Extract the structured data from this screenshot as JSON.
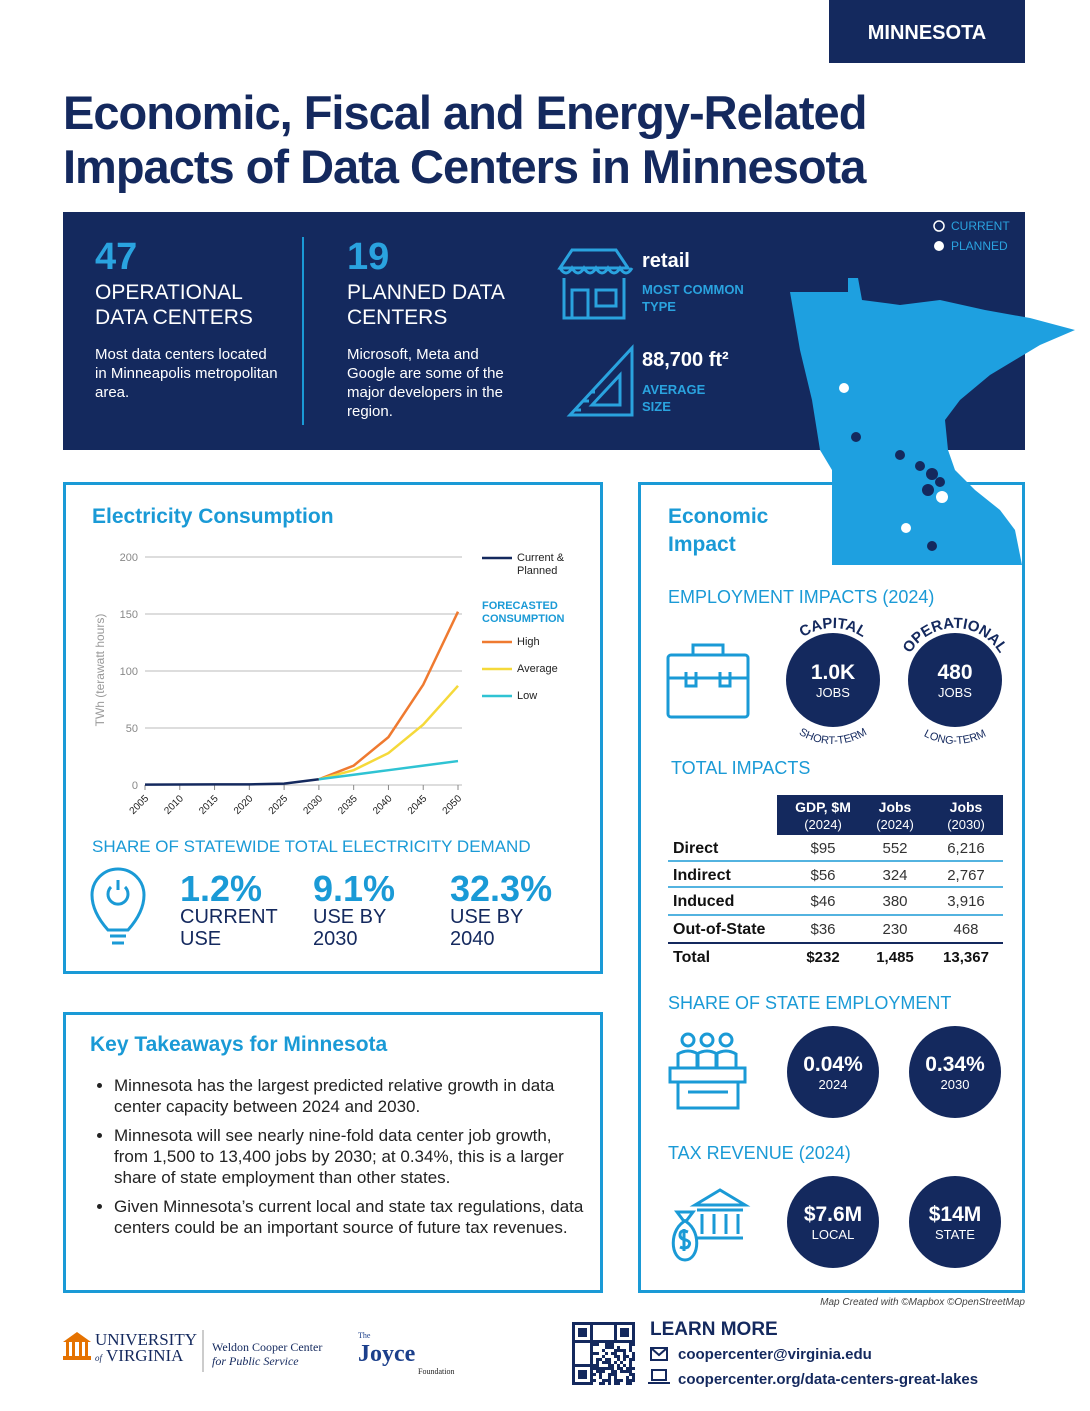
{
  "tag": "MINNESOTA",
  "title": [
    "Economic, Fiscal and Energy-Related",
    "Impacts of Data Centers in Minnesota"
  ],
  "banner": {
    "stats": [
      {
        "value": "47",
        "label": "OPERATIONAL DATA CENTERS",
        "note": "Most data centers located in Minneapolis metropolitan area."
      },
      {
        "value": "19",
        "label": "PLANNED DATA CENTERS",
        "note": "Microsoft, Meta and Google are some of the major developers in the region."
      }
    ],
    "type": {
      "value": "retail",
      "label": "MOST COMMON TYPE"
    },
    "size": {
      "value": "88,700 ft²",
      "label": "AVERAGE SIZE"
    },
    "map_legend": [
      "CURRENT",
      "PLANNED"
    ]
  },
  "electricity": {
    "title": "Electricity Consumption",
    "share_title": "SHARE OF STATEWIDE TOTAL ELECTRICITY DEMAND",
    "shares": [
      {
        "value": "1.2%",
        "label": "CURRENT USE"
      },
      {
        "value": "9.1%",
        "label": "USE BY 2030"
      },
      {
        "value": "32.3%",
        "label": "USE BY 2040"
      }
    ]
  },
  "chart_data": {
    "type": "line",
    "y_label": "TWh (terawatt hours)",
    "legend_title": "FORECASTED CONSUMPTION",
    "x": [
      2005,
      2010,
      2015,
      2020,
      2025,
      2030,
      2035,
      2040,
      2045,
      2050
    ],
    "xlim": [
      2005,
      2050
    ],
    "xticks": [
      2005,
      2010,
      2015,
      2020,
      2025,
      2030,
      2035,
      2040,
      2045,
      2050
    ],
    "ylim": [
      0,
      200
    ],
    "yticks": [
      0,
      50,
      100,
      150,
      200
    ],
    "grid": true,
    "series": [
      {
        "name": "Current & Planned",
        "color": "#14295e",
        "values": [
          0.3,
          0.4,
          0.5,
          0.6,
          1.2,
          5,
          null,
          null,
          null,
          null
        ]
      },
      {
        "name": "High",
        "color": "#ef7a30",
        "values": [
          null,
          null,
          null,
          null,
          null,
          5,
          17,
          42,
          88,
          152
        ]
      },
      {
        "name": "Average",
        "color": "#f5d93a",
        "values": [
          null,
          null,
          null,
          null,
          null,
          5,
          13,
          28,
          53,
          87
        ]
      },
      {
        "name": "Low",
        "color": "#2fc3d3",
        "values": [
          null,
          null,
          null,
          null,
          null,
          5,
          9,
          13,
          17,
          21
        ]
      }
    ]
  },
  "takeaways": {
    "title": "Key Takeaways for Minnesota",
    "items": [
      "Minnesota has the largest predicted relative growth in data center capacity between 2024 and 2030.",
      "Minnesota will see nearly nine-fold data center job growth, from 1,500 to 13,400 jobs by 2030; at 0.34%, this is a larger share of state employment than other states.",
      "Given Minnesota’s current local and state tax regulations, data centers could be an important source of future tax revenues."
    ]
  },
  "economic": {
    "title": "Economic Impact",
    "employment": {
      "title": "EMPLOYMENT IMPACTS (2024)",
      "items": [
        {
          "arc_top": "CAPITAL",
          "value": "1.0K",
          "unit": "JOBS",
          "arc_bottom": "SHORT-TERM"
        },
        {
          "arc_top": "OPERATIONAL",
          "value": "480",
          "unit": "JOBS",
          "arc_bottom": "LONG-TERM"
        }
      ]
    },
    "total_impacts": {
      "title": "TOTAL IMPACTS",
      "headers": [
        [
          "GDP, $M",
          "(2024)"
        ],
        [
          "Jobs",
          "(2024)"
        ],
        [
          "Jobs",
          "(2030)"
        ]
      ],
      "rows": [
        [
          "Direct",
          "$95",
          "552",
          "6,216"
        ],
        [
          "Indirect",
          "$56",
          "324",
          "2,767"
        ],
        [
          "Induced",
          "$46",
          "380",
          "3,916"
        ],
        [
          "Out-of-State",
          "$36",
          "230",
          "468"
        ],
        [
          "Total",
          "$232",
          "1,485",
          "13,367"
        ]
      ]
    },
    "share_employment": {
      "title": "SHARE OF STATE EMPLOYMENT",
      "items": [
        {
          "value": "0.04%",
          "label": "2024"
        },
        {
          "value": "0.34%",
          "label": "2030"
        }
      ]
    },
    "tax": {
      "title": "TAX REVENUE (2024)",
      "items": [
        {
          "value": "$7.6M",
          "label": "LOCAL"
        },
        {
          "value": "$14M",
          "label": "STATE"
        }
      ]
    }
  },
  "credit": "Map Created with ©Mapbox ©OpenStreetMap",
  "footer": {
    "uva": [
      "UNIVERSITY",
      "of",
      "VIRGINIA"
    ],
    "weldon": [
      "Weldon Cooper Center",
      "for Public Service"
    ],
    "joyce": [
      "The",
      "Joyce",
      "Foundation"
    ],
    "learn_more": "LEARN MORE",
    "email": "coopercenter@virginia.edu",
    "url": "coopercenter.org/data-centers-great-lakes"
  }
}
